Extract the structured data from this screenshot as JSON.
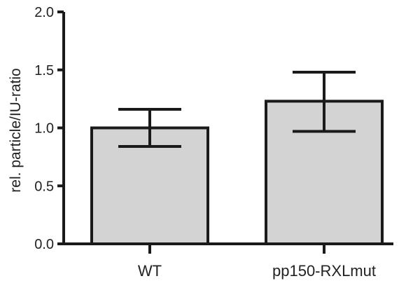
{
  "chart_data": {
    "type": "bar",
    "categories": [
      "WT",
      "pp150-RXLmut"
    ],
    "values": [
      1.0,
      1.23
    ],
    "error_bars": [
      {
        "upper": 1.16,
        "lower": 0.84
      },
      {
        "upper": 1.48,
        "lower": 0.97
      }
    ],
    "ylabel": "rel. particle/IU-ratio",
    "ylim": [
      0,
      2.0
    ],
    "yticks": [
      "0.0",
      "0.5",
      "1.0",
      "1.5",
      "2.0"
    ],
    "bar_color": "#d3d3d3",
    "edge_color": "#1a1a1a",
    "grid": false
  }
}
